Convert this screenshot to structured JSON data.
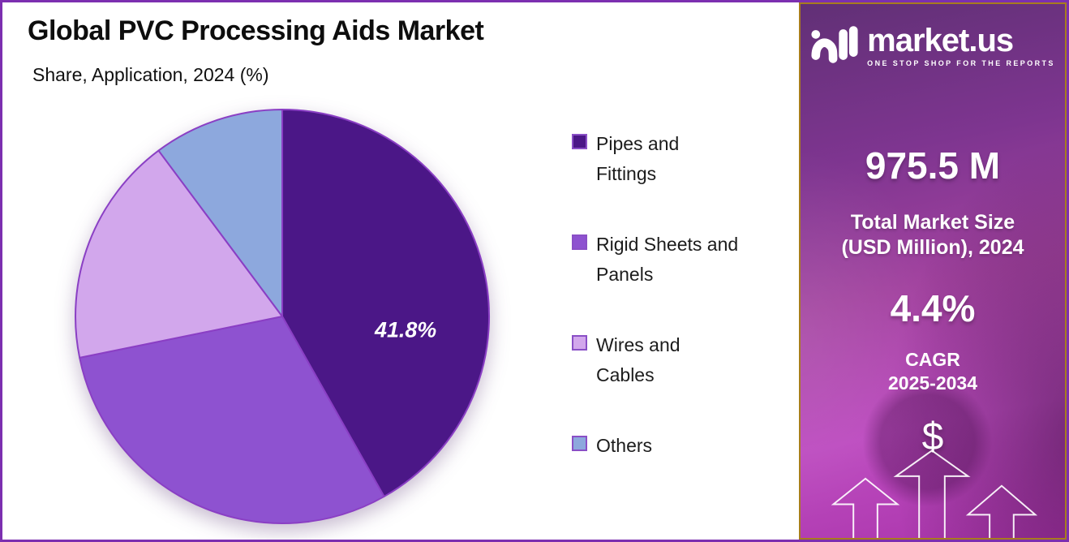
{
  "header": {
    "title": "Global PVC Processing Aids Market",
    "subtitle": "Share, Application, 2024 (%)"
  },
  "chart_data": {
    "type": "pie",
    "title": "Global PVC Processing Aids Market",
    "subtitle": "Share, Application, 2024 (%)",
    "unit": "%",
    "start_angle": "12 o'clock",
    "direction": "clockwise",
    "legend_position": "right",
    "slices": [
      {
        "label": "Pipes and Fittings",
        "legend_lines": [
          "Pipes and",
          "Fittings"
        ],
        "value": 41.8,
        "data_label": "41.8%",
        "labeled": true,
        "color": "#4b1787"
      },
      {
        "label": "Rigid Sheets and Panels",
        "legend_lines": [
          "Rigid Sheets and",
          "Panels"
        ],
        "value": 30.0,
        "labeled": false,
        "color": "#8e52d0"
      },
      {
        "label": "Wires and Cables",
        "legend_lines": [
          "Wires and",
          "Cables"
        ],
        "value": 18.0,
        "labeled": false,
        "color": "#d2a7ec"
      },
      {
        "label": "Others",
        "legend_lines": [
          "Others"
        ],
        "value": 10.2,
        "labeled": false,
        "color": "#8da8dd"
      }
    ]
  },
  "sidebar": {
    "logo": {
      "text": "market.us",
      "tagline": "ONE STOP SHOP FOR THE REPORTS"
    },
    "market_size": {
      "value": "975.5 M",
      "label_line1": "Total Market Size",
      "label_line2": "(USD Million), 2024"
    },
    "cagr": {
      "value": "4.4%",
      "label_line1": "CAGR",
      "label_line2": "2025-2034"
    },
    "dollar_symbol": "$"
  },
  "colors": {
    "frame-border": "#7c2fb0",
    "sidebar-border": "#a87c1e",
    "pie-stroke": "#8a3fc4",
    "legend-swatch-border": "#8a4fc6",
    "pie-label-text": "#ffffff"
  }
}
